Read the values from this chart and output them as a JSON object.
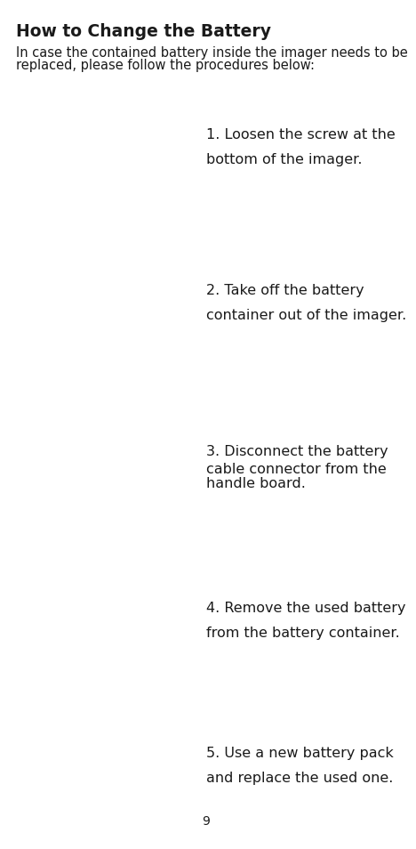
{
  "title": "How to Change the Battery",
  "intro_line1": "In case the contained battery inside the imager needs to be",
  "intro_line2": "replaced, please follow the procedures below:",
  "steps": [
    {
      "number": 1,
      "line1": "1. Loosen the screw at the",
      "line2": "bottom of the imager."
    },
    {
      "number": 2,
      "line1": "2. Take off the battery",
      "line2": "container out of the imager."
    },
    {
      "number": 3,
      "line1": "3. Disconnect the battery",
      "line2": "cable connector from the",
      "line3": "handle board."
    },
    {
      "number": 4,
      "line1": "4. Remove the used battery",
      "line2": "from the battery container."
    },
    {
      "number": 5,
      "line1": "5. Use a new battery pack",
      "line2": "and replace the used one."
    }
  ],
  "page_number": "9",
  "bg_color": "#ffffff",
  "text_color": "#1a1a1a",
  "title_fontsize": 13.5,
  "intro_fontsize": 10.5,
  "step_fontsize": 11.5
}
